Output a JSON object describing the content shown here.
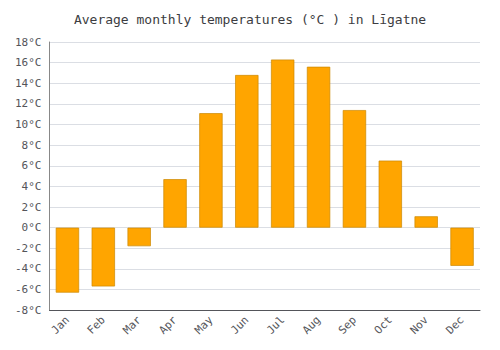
{
  "chart_data": {
    "type": "bar",
    "title": "Average monthly temperatures (°C ) in Līgatne",
    "categories": [
      "Jan",
      "Feb",
      "Mar",
      "Apr",
      "May",
      "Jun",
      "Jul",
      "Aug",
      "Sep",
      "Oct",
      "Nov",
      "Dec"
    ],
    "values": [
      -6.3,
      -5.7,
      -1.8,
      4.7,
      11.1,
      14.8,
      16.3,
      15.6,
      11.4,
      6.5,
      1.1,
      -3.7
    ],
    "color": "#FFA500",
    "ylim": [
      -8,
      18
    ],
    "yticks": [
      {
        "value": -8,
        "label": "-8°C"
      },
      {
        "value": -6,
        "label": "-6°C"
      },
      {
        "value": -4,
        "label": "-4°C"
      },
      {
        "value": -2,
        "label": "-2°C"
      },
      {
        "value": 0,
        "label": "0°C"
      },
      {
        "value": 2,
        "label": "2°C"
      },
      {
        "value": 4,
        "label": "4°C"
      },
      {
        "value": 6,
        "label": "6°C"
      },
      {
        "value": 8,
        "label": "8°C"
      },
      {
        "value": 10,
        "label": "10°C"
      },
      {
        "value": 12,
        "label": "12°C"
      },
      {
        "value": 14,
        "label": "14°C"
      },
      {
        "value": 16,
        "label": "16°C"
      },
      {
        "value": 18,
        "label": "18°C"
      }
    ],
    "grid": true
  }
}
